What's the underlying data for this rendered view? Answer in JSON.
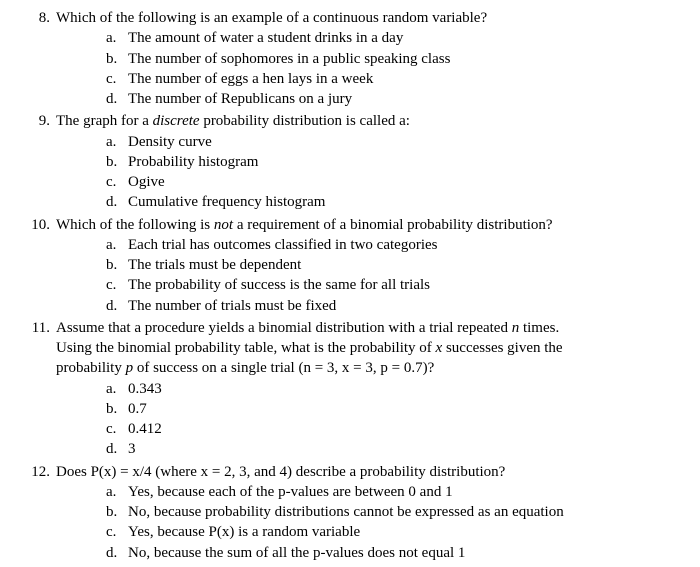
{
  "questions": [
    {
      "number": "8.",
      "stem": "Which of the following is an example of a continuous random variable?",
      "options": [
        {
          "letter": "a.",
          "text": "The amount of water a student drinks in a day"
        },
        {
          "letter": "b.",
          "text": "The number of sophomores in a public speaking class"
        },
        {
          "letter": "c.",
          "text": "The number of eggs a hen lays in a week"
        },
        {
          "letter": "d.",
          "text": "The number of Republicans on a jury"
        }
      ]
    },
    {
      "number": "9.",
      "stem_pre": "The graph for a ",
      "stem_italic": "discrete",
      "stem_post": " probability distribution is called a:",
      "options": [
        {
          "letter": "a.",
          "text": "Density curve"
        },
        {
          "letter": "b.",
          "text": "Probability histogram"
        },
        {
          "letter": "c.",
          "text": "Ogive"
        },
        {
          "letter": "d.",
          "text": "Cumulative frequency histogram"
        }
      ]
    },
    {
      "number": "10.",
      "stem_pre": "Which of the following is ",
      "stem_italic": "not",
      "stem_post": " a requirement of a binomial probability distribution?",
      "options": [
        {
          "letter": "a.",
          "text": "Each trial has outcomes classified in two categories"
        },
        {
          "letter": "b.",
          "text": "The trials must be dependent"
        },
        {
          "letter": "c.",
          "text": "The probability of success is the same for all trials"
        },
        {
          "letter": "d.",
          "text": "The number of trials must be fixed"
        }
      ]
    },
    {
      "number": "11.",
      "stem_line1_pre": "Assume that a procedure yields a binomial distribution with a trial repeated ",
      "stem_line1_italic": "n",
      "stem_line1_post": " times.",
      "stem_line2_pre": "Using the binomial probability table, what is the probability of ",
      "stem_line2_italic": "x",
      "stem_line2_post": " successes given the",
      "stem_line3_pre": "probability ",
      "stem_line3_italic": "p",
      "stem_line3_post": " of success on a single trial (n = 3, x = 3, p = 0.7)?",
      "options": [
        {
          "letter": "a.",
          "text": "0.343"
        },
        {
          "letter": "b.",
          "text": "0.7"
        },
        {
          "letter": "c.",
          "text": "0.412"
        },
        {
          "letter": "d.",
          "text": "3"
        }
      ]
    },
    {
      "number": "12.",
      "stem": "Does P(x) = x/4 (where x = 2, 3, and 4) describe a probability distribution?",
      "options": [
        {
          "letter": "a.",
          "text": "Yes, because each of the p-values are between 0 and 1"
        },
        {
          "letter": "b.",
          "text": "No, because probability distributions cannot be expressed as an equation"
        },
        {
          "letter": "c.",
          "text": "Yes, because P(x) is a random variable"
        },
        {
          "letter": "d.",
          "text": "No, because the sum of all the p-values does not equal 1"
        }
      ]
    }
  ]
}
